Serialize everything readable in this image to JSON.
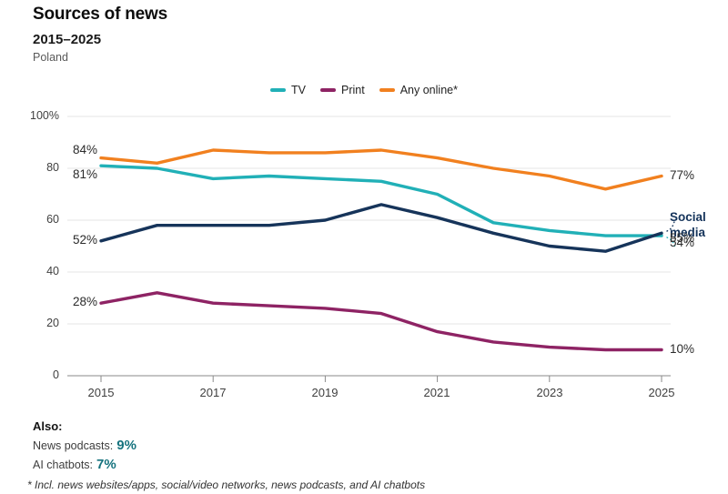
{
  "header": {
    "title": "Sources of news",
    "subtitle": "2015–2025",
    "region": "Poland"
  },
  "legend": {
    "items": [
      {
        "label": "TV",
        "color": "#21b0b7"
      },
      {
        "label": "Print",
        "color": "#8e2364"
      },
      {
        "label": "Any online*",
        "color": "#f1801f"
      }
    ]
  },
  "chart_data": {
    "type": "line",
    "title": "Sources of news",
    "subtitle": "2015–2025",
    "region": "Poland",
    "x": [
      2015,
      2016,
      2017,
      2018,
      2019,
      2020,
      2021,
      2022,
      2023,
      2024,
      2025
    ],
    "series": [
      {
        "name": "Print",
        "color": "#8e2364",
        "values": [
          28,
          32,
          28,
          27,
          26,
          24,
          17,
          13,
          11,
          10,
          10
        ],
        "start_label": "28%",
        "end_label": "10%"
      },
      {
        "name": "TV",
        "color": "#21b0b7",
        "values": [
          81,
          80,
          76,
          77,
          76,
          75,
          70,
          59,
          56,
          54,
          54
        ],
        "start_label": "81%",
        "end_label": "54%"
      },
      {
        "name": "Any online*",
        "color": "#f1801f",
        "values": [
          84,
          82,
          87,
          86,
          86,
          87,
          84,
          80,
          77,
          72,
          77
        ],
        "start_label": "84%",
        "end_label": "77%"
      },
      {
        "name": "Social media",
        "color": "#16345a",
        "values": [
          52,
          58,
          58,
          58,
          60,
          66,
          61,
          55,
          50,
          48,
          55
        ],
        "start_label": "52%",
        "end_label": "55%",
        "annotation": "Social media"
      }
    ],
    "ylim": [
      0,
      100
    ],
    "grid": "horizontal",
    "legend_position": "top",
    "y_ticks": [
      {
        "value": 100,
        "label": "100%"
      },
      {
        "value": 80,
        "label": "80"
      },
      {
        "value": 60,
        "label": "60"
      },
      {
        "value": 40,
        "label": "40"
      },
      {
        "value": 20,
        "label": "20"
      },
      {
        "value": 0,
        "label": "0"
      }
    ],
    "x_ticks": [
      {
        "value": 2015,
        "label": "2015"
      },
      {
        "value": 2017,
        "label": "2017"
      },
      {
        "value": 2019,
        "label": "2019"
      },
      {
        "value": 2021,
        "label": "2021"
      },
      {
        "value": 2023,
        "label": "2023"
      },
      {
        "value": 2025,
        "label": "2025"
      }
    ]
  },
  "also": {
    "heading": "Also:",
    "items": [
      {
        "label": "News podcasts:",
        "value": "9%"
      },
      {
        "label": "AI chatbots:",
        "value": "7%"
      }
    ]
  },
  "footnote": "* Incl. news websites/apps, social/video networks, news podcasts, and AI chatbots"
}
